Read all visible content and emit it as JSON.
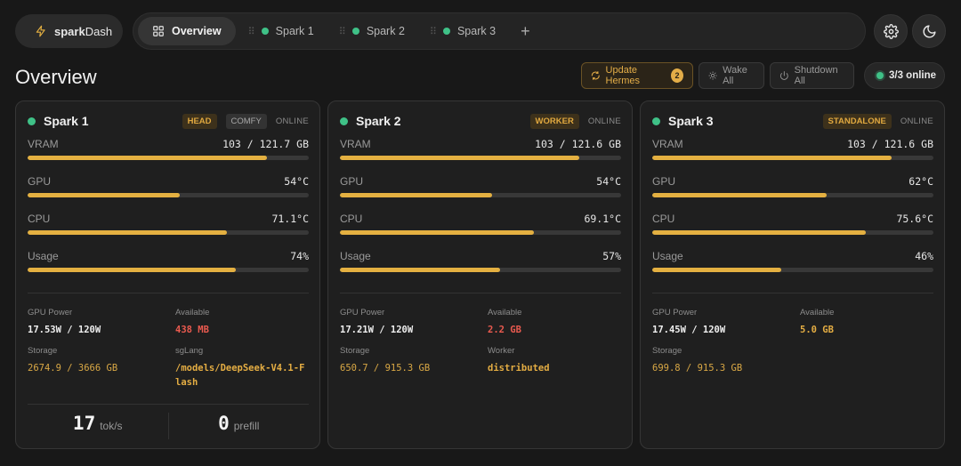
{
  "brand": {
    "name_bold": "spark",
    "name_rest": "Dash"
  },
  "tabs": [
    {
      "label": "Overview",
      "active": true
    },
    {
      "label": "Spark 1"
    },
    {
      "label": "Spark 2"
    },
    {
      "label": "Spark 3"
    }
  ],
  "add_tab_label": "+",
  "page_title": "Overview",
  "actions": {
    "update_label": "Update Hermes",
    "update_badge": "2",
    "wake_label": "Wake All",
    "shutdown_label": "Shutdown All",
    "online_label": "3/3 online"
  },
  "labels": {
    "vram": "VRAM",
    "gpu": "GPU",
    "cpu": "CPU",
    "usage": "Usage",
    "gpu_power": "GPU Power",
    "available": "Available",
    "storage": "Storage",
    "sglang": "sgLang",
    "worker": "Worker",
    "toks_unit": "tok/s",
    "prefill_unit": "prefill"
  },
  "colors": {
    "accent": "#e4b041",
    "online": "#3fc187",
    "danger": "#ea5a4f"
  },
  "cards": [
    {
      "name": "Spark 1",
      "tags": [
        "HEAD",
        "COMFY"
      ],
      "status": "ONLINE",
      "vram": "103 / 121.7 GB",
      "vram_pct": 85,
      "gpu": "54°C",
      "gpu_pct": 54,
      "cpu": "71.1°C",
      "cpu_pct": 71,
      "usage": "74%",
      "usage_pct": 74,
      "gpu_power": "17.53W / 120W",
      "available": "438 MB",
      "storage": "2674.9 / 3666 GB",
      "sglang": "/models/DeepSeek-V4.1-Flash",
      "toks": "17",
      "prefill": "0"
    },
    {
      "name": "Spark 2",
      "tags": [
        "WORKER"
      ],
      "status": "ONLINE",
      "vram": "103 / 121.6 GB",
      "vram_pct": 85,
      "gpu": "54°C",
      "gpu_pct": 54,
      "cpu": "69.1°C",
      "cpu_pct": 69,
      "usage": "57%",
      "usage_pct": 57,
      "gpu_power": "17.21W / 120W",
      "available": "2.2 GB",
      "storage": "650.7 / 915.3 GB",
      "worker": "distributed"
    },
    {
      "name": "Spark 3",
      "tags": [
        "STANDALONE"
      ],
      "status": "ONLINE",
      "vram": "103 / 121.6 GB",
      "vram_pct": 85,
      "gpu": "62°C",
      "gpu_pct": 62,
      "cpu": "75.6°C",
      "cpu_pct": 76,
      "usage": "46%",
      "usage_pct": 46,
      "gpu_power": "17.45W / 120W",
      "available": "5.0 GB",
      "storage": "699.8 / 915.3 GB"
    }
  ]
}
